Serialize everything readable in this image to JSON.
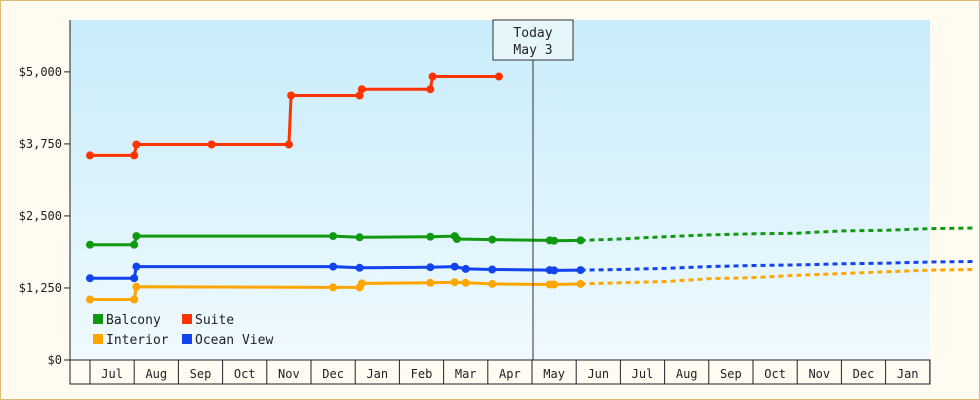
{
  "chart_data": {
    "type": "line",
    "today_label": [
      "Today",
      "May 3"
    ],
    "y_ticks": [
      "$0",
      "$1,250",
      "$2,500",
      "$3,750",
      "$5,000"
    ],
    "y_tick_values": [
      0,
      1250,
      2500,
      3750,
      5000
    ],
    "ylim": [
      0,
      5900
    ],
    "month_labels": [
      "Jul",
      "Aug",
      "Sep",
      "Oct",
      "Nov",
      "Dec",
      "Jan",
      "Feb",
      "Mar",
      "Apr",
      "May",
      "Jun",
      "Jul",
      "Aug",
      "Sep",
      "Oct",
      "Nov",
      "Dec",
      "Jan"
    ],
    "grid": false,
    "legend_position": "bottom-left",
    "colors": {
      "Balcony": "#119911",
      "Suite": "#ff3300",
      "Interior": "#ffa500",
      "Ocean View": "#1144ee",
      "background_top": "#c8ecfa",
      "background_bottom": "#f0faff"
    },
    "series": [
      {
        "name": "Balcony",
        "points": [
          [
            -0.5,
            2000
          ],
          [
            0.5,
            2000
          ],
          [
            0.55,
            2150
          ],
          [
            5.0,
            2150
          ],
          [
            5.6,
            2130
          ],
          [
            7.2,
            2140
          ],
          [
            7.75,
            2150
          ],
          [
            7.8,
            2100
          ],
          [
            8.6,
            2090
          ],
          [
            9.9,
            2075
          ],
          [
            10.0,
            2070
          ],
          [
            10.6,
            2075
          ]
        ],
        "forecast": [
          [
            10.6,
            2075
          ],
          [
            11.5,
            2100
          ],
          [
            12.5,
            2140
          ],
          [
            13.5,
            2170
          ],
          [
            14.5,
            2190
          ],
          [
            15.5,
            2200
          ],
          [
            16.5,
            2240
          ],
          [
            17.5,
            2250
          ],
          [
            18.5,
            2280
          ],
          [
            19.5,
            2290
          ]
        ]
      },
      {
        "name": "Suite",
        "points": [
          [
            -0.5,
            3550
          ],
          [
            0.5,
            3550
          ],
          [
            0.55,
            3740
          ],
          [
            2.25,
            3740
          ],
          [
            4.0,
            3740
          ],
          [
            4.05,
            4590
          ],
          [
            5.6,
            4590
          ],
          [
            5.65,
            4700
          ],
          [
            7.2,
            4700
          ],
          [
            7.25,
            4920
          ],
          [
            8.75,
            4920
          ]
        ]
      },
      {
        "name": "Interior",
        "points": [
          [
            -0.5,
            1050
          ],
          [
            0.5,
            1050
          ],
          [
            0.55,
            1270
          ],
          [
            5.0,
            1260
          ],
          [
            5.6,
            1260
          ],
          [
            5.65,
            1330
          ],
          [
            7.2,
            1340
          ],
          [
            7.75,
            1350
          ],
          [
            8.0,
            1340
          ],
          [
            8.6,
            1320
          ],
          [
            9.9,
            1310
          ],
          [
            10.0,
            1310
          ],
          [
            10.6,
            1320
          ]
        ],
        "forecast": [
          [
            10.6,
            1320
          ],
          [
            11.5,
            1340
          ],
          [
            12.5,
            1360
          ],
          [
            13.5,
            1410
          ],
          [
            14.5,
            1430
          ],
          [
            15.5,
            1470
          ],
          [
            16.5,
            1500
          ],
          [
            17.5,
            1530
          ],
          [
            18.5,
            1560
          ],
          [
            19.5,
            1570
          ]
        ]
      },
      {
        "name": "Ocean View",
        "points": [
          [
            -0.5,
            1420
          ],
          [
            0.5,
            1420
          ],
          [
            0.55,
            1620
          ],
          [
            5.0,
            1620
          ],
          [
            5.6,
            1600
          ],
          [
            7.2,
            1610
          ],
          [
            7.75,
            1620
          ],
          [
            8.0,
            1580
          ],
          [
            8.6,
            1570
          ],
          [
            9.9,
            1560
          ],
          [
            10.0,
            1555
          ],
          [
            10.6,
            1560
          ]
        ],
        "forecast": [
          [
            10.6,
            1560
          ],
          [
            11.5,
            1570
          ],
          [
            12.5,
            1590
          ],
          [
            13.5,
            1620
          ],
          [
            14.5,
            1640
          ],
          [
            15.5,
            1650
          ],
          [
            16.5,
            1670
          ],
          [
            17.5,
            1680
          ],
          [
            18.5,
            1700
          ],
          [
            19.5,
            1710
          ]
        ]
      }
    ],
    "legend": [
      {
        "name": "Balcony",
        "color": "#119911"
      },
      {
        "name": "Suite",
        "color": "#ff3300"
      },
      {
        "name": "Interior",
        "color": "#ffa500"
      },
      {
        "name": "Ocean View",
        "color": "#1144ee"
      }
    ]
  }
}
